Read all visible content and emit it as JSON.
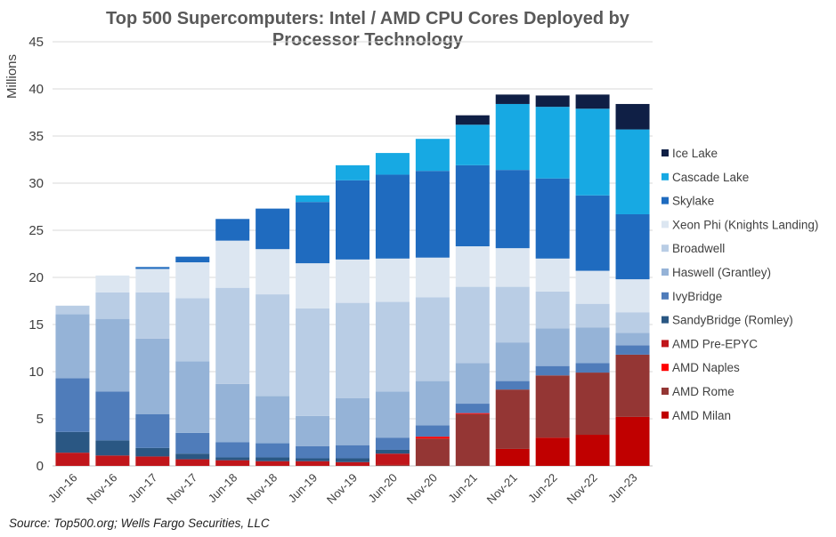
{
  "chart_data": {
    "type": "bar",
    "stacked": true,
    "title_lines": [
      "Top 500 Supercomputers: Intel / AMD CPU Cores Deployed by",
      "Processor Technology"
    ],
    "xlabel": "",
    "ylabel": "Millions",
    "ylim": [
      0,
      45
    ],
    "yticks": [
      0,
      5,
      10,
      15,
      20,
      25,
      30,
      35,
      40,
      45
    ],
    "grid": true,
    "legend_position": "right",
    "categories": [
      "Jun-16",
      "Nov-16",
      "Jun-17",
      "Nov-17",
      "Jun-18",
      "Nov-18",
      "Jun-19",
      "Nov-19",
      "Jun-20",
      "Nov-20",
      "Jun-21",
      "Nov-21",
      "Jun-22",
      "Nov-22",
      "Jun-23"
    ],
    "series": [
      {
        "name": "AMD Milan",
        "color": "#c00000",
        "values": [
          0,
          0,
          0,
          0,
          0,
          0,
          0,
          0,
          0,
          0,
          0,
          1.8,
          3.0,
          3.3,
          5.2
        ]
      },
      {
        "name": "AMD Rome",
        "color": "#943634",
        "values": [
          0,
          0,
          0,
          0,
          0,
          0,
          0,
          0,
          0.1,
          2.9,
          5.5,
          6.3,
          6.6,
          6.6,
          6.6
        ]
      },
      {
        "name": "AMD Naples",
        "color": "#ff0000",
        "values": [
          0,
          0,
          0,
          0,
          0,
          0,
          0,
          0,
          0,
          0.2,
          0.1,
          0,
          0,
          0,
          0
        ]
      },
      {
        "name": "AMD Pre-EPYC",
        "color": "#c0161b",
        "values": [
          1.4,
          1.1,
          1.0,
          0.7,
          0.6,
          0.5,
          0.5,
          0.4,
          1.2,
          0,
          0,
          0,
          0,
          0,
          0
        ]
      },
      {
        "name": "SandyBridge (Romley)",
        "color": "#2a5783",
        "values": [
          2.2,
          1.6,
          0.9,
          0.6,
          0.3,
          0.4,
          0.3,
          0.4,
          0.4,
          0,
          0,
          0,
          0,
          0,
          0
        ]
      },
      {
        "name": "IvyBridge",
        "color": "#4f7cba",
        "values": [
          5.7,
          5.2,
          3.6,
          2.2,
          1.6,
          1.5,
          1.3,
          1.4,
          1.3,
          1.2,
          1.0,
          0.9,
          1.0,
          1.0,
          1.0
        ]
      },
      {
        "name": "Haswell (Grantley)",
        "color": "#95b3d7",
        "values": [
          6.8,
          7.7,
          8.0,
          7.6,
          6.2,
          5.0,
          3.2,
          5.0,
          4.9,
          4.7,
          4.3,
          4.1,
          4.0,
          3.8,
          1.3
        ]
      },
      {
        "name": "Broadwell",
        "color": "#b9cde5",
        "values": [
          0.9,
          2.8,
          4.9,
          6.7,
          10.2,
          10.8,
          11.4,
          10.1,
          9.5,
          8.9,
          8.1,
          5.9,
          3.9,
          2.5,
          2.2
        ]
      },
      {
        "name": "Xeon Phi (Knights Landing)",
        "color": "#dce6f1",
        "values": [
          0,
          1.8,
          2.5,
          3.8,
          5.0,
          4.8,
          4.8,
          4.6,
          4.6,
          4.2,
          4.3,
          4.1,
          3.5,
          3.5,
          3.5
        ]
      },
      {
        "name": "Skylake",
        "color": "#1f6bbf",
        "values": [
          0,
          0,
          0.2,
          0.6,
          2.3,
          4.3,
          6.5,
          8.4,
          8.9,
          9.2,
          8.6,
          8.3,
          8.5,
          8.0,
          6.9
        ]
      },
      {
        "name": "Cascade Lake",
        "color": "#17a9e3",
        "values": [
          0,
          0,
          0,
          0,
          0,
          0,
          0.7,
          1.6,
          2.3,
          3.4,
          4.3,
          7.0,
          7.6,
          9.2,
          9.0
        ]
      },
      {
        "name": "Ice Lake",
        "color": "#0f1f45",
        "values": [
          0,
          0,
          0,
          0,
          0,
          0,
          0,
          0,
          0,
          0,
          1.0,
          1.0,
          1.2,
          1.5,
          2.7
        ]
      }
    ],
    "source": "Source: Top500.org;  Wells Fargo Securities, LLC"
  }
}
